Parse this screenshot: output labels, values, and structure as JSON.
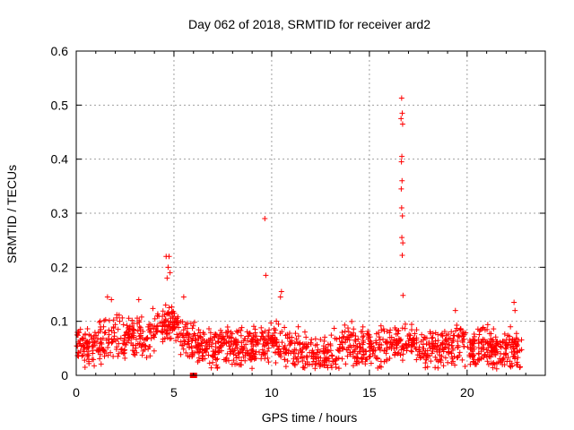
{
  "chart_data": {
    "type": "scatter",
    "title": "Day 062 of 2018, SRMTID for receiver ard2",
    "xlabel": "GPS time / hours",
    "ylabel": "SRMTID / TECUs",
    "xlim": [
      0,
      24
    ],
    "ylim": [
      0,
      0.6
    ],
    "xticks": [
      0,
      5,
      10,
      15,
      20
    ],
    "yticks": [
      0,
      0.1,
      0.2,
      0.3,
      0.4,
      0.5,
      0.6
    ],
    "xtick_labels": [
      "0",
      "5",
      "10",
      "15",
      "20"
    ],
    "ytick_labels": [
      "0",
      "0.1",
      "0.2",
      "0.3",
      "0.4",
      "0.5",
      "0.6"
    ],
    "grid": true,
    "marker": "+",
    "color": "#ff0000",
    "data_gap_marker": {
      "x": 6.0,
      "y": 0.0
    },
    "profile": [
      {
        "x": 0.0,
        "y": 0.06
      },
      {
        "x": 0.5,
        "y": 0.05
      },
      {
        "x": 1.0,
        "y": 0.055
      },
      {
        "x": 1.5,
        "y": 0.07
      },
      {
        "x": 2.0,
        "y": 0.075
      },
      {
        "x": 2.5,
        "y": 0.07
      },
      {
        "x": 3.0,
        "y": 0.075
      },
      {
        "x": 3.5,
        "y": 0.07
      },
      {
        "x": 4.0,
        "y": 0.08
      },
      {
        "x": 4.5,
        "y": 0.1
      },
      {
        "x": 5.0,
        "y": 0.09
      },
      {
        "x": 5.5,
        "y": 0.075
      },
      {
        "x": 6.0,
        "y": 0.06
      },
      {
        "x": 6.5,
        "y": 0.055
      },
      {
        "x": 7.0,
        "y": 0.05
      },
      {
        "x": 7.5,
        "y": 0.055
      },
      {
        "x": 8.0,
        "y": 0.05
      },
      {
        "x": 8.5,
        "y": 0.05
      },
      {
        "x": 9.0,
        "y": 0.05
      },
      {
        "x": 9.5,
        "y": 0.065
      },
      {
        "x": 10.0,
        "y": 0.06
      },
      {
        "x": 10.5,
        "y": 0.055
      },
      {
        "x": 11.0,
        "y": 0.05
      },
      {
        "x": 11.5,
        "y": 0.045
      },
      {
        "x": 12.0,
        "y": 0.035
      },
      {
        "x": 12.5,
        "y": 0.035
      },
      {
        "x": 13.0,
        "y": 0.04
      },
      {
        "x": 13.5,
        "y": 0.05
      },
      {
        "x": 14.0,
        "y": 0.06
      },
      {
        "x": 14.5,
        "y": 0.05
      },
      {
        "x": 15.0,
        "y": 0.05
      },
      {
        "x": 15.5,
        "y": 0.05
      },
      {
        "x": 16.0,
        "y": 0.055
      },
      {
        "x": 16.5,
        "y": 0.06
      },
      {
        "x": 17.0,
        "y": 0.065
      },
      {
        "x": 17.5,
        "y": 0.055
      },
      {
        "x": 18.0,
        "y": 0.05
      },
      {
        "x": 18.5,
        "y": 0.05
      },
      {
        "x": 19.0,
        "y": 0.055
      },
      {
        "x": 19.5,
        "y": 0.06
      },
      {
        "x": 20.0,
        "y": 0.055
      },
      {
        "x": 20.5,
        "y": 0.05
      },
      {
        "x": 21.0,
        "y": 0.05
      },
      {
        "x": 21.5,
        "y": 0.045
      },
      {
        "x": 22.0,
        "y": 0.045
      },
      {
        "x": 22.5,
        "y": 0.05
      },
      {
        "x": 22.8,
        "y": 0.05
      }
    ],
    "outliers": [
      {
        "x": 9.65,
        "y": 0.29
      },
      {
        "x": 9.7,
        "y": 0.185
      },
      {
        "x": 4.6,
        "y": 0.22
      },
      {
        "x": 4.75,
        "y": 0.22
      },
      {
        "x": 4.7,
        "y": 0.2
      },
      {
        "x": 4.8,
        "y": 0.19
      },
      {
        "x": 4.65,
        "y": 0.18
      },
      {
        "x": 16.65,
        "y": 0.513
      },
      {
        "x": 16.68,
        "y": 0.485
      },
      {
        "x": 16.62,
        "y": 0.475
      },
      {
        "x": 16.7,
        "y": 0.465
      },
      {
        "x": 16.66,
        "y": 0.405
      },
      {
        "x": 16.64,
        "y": 0.395
      },
      {
        "x": 16.67,
        "y": 0.36
      },
      {
        "x": 16.63,
        "y": 0.345
      },
      {
        "x": 16.65,
        "y": 0.31
      },
      {
        "x": 16.69,
        "y": 0.295
      },
      {
        "x": 16.66,
        "y": 0.255
      },
      {
        "x": 16.71,
        "y": 0.245
      },
      {
        "x": 16.68,
        "y": 0.222
      },
      {
        "x": 16.72,
        "y": 0.148
      },
      {
        "x": 22.4,
        "y": 0.135
      },
      {
        "x": 22.45,
        "y": 0.12
      },
      {
        "x": 19.4,
        "y": 0.12
      },
      {
        "x": 1.6,
        "y": 0.145
      },
      {
        "x": 1.8,
        "y": 0.14
      },
      {
        "x": 3.2,
        "y": 0.14
      },
      {
        "x": 10.5,
        "y": 0.155
      },
      {
        "x": 10.45,
        "y": 0.145
      },
      {
        "x": 5.5,
        "y": 0.145
      }
    ]
  }
}
